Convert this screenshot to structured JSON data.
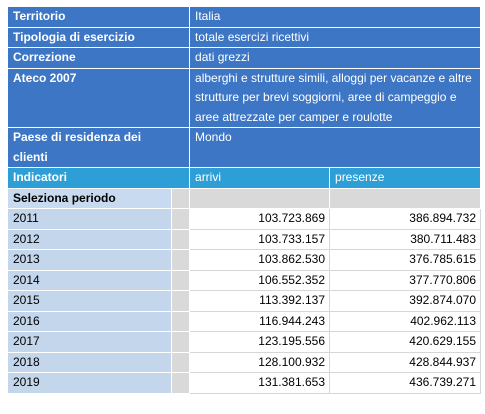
{
  "header": [
    {
      "label": "Territorio",
      "value": "Italia"
    },
    {
      "label": "Tipologia di esercizio",
      "value": "totale esercizi ricettivi"
    },
    {
      "label": "Correzione",
      "value": "dati grezzi"
    },
    {
      "label": "Ateco 2007",
      "value": "alberghi e strutture simili, alloggi per vacanze e altre strutture per brevi soggiorni, aree di campeggio e aree attrezzate per camper e roulotte"
    },
    {
      "label": "Paese di residenza dei clienti",
      "value": "Mondo"
    }
  ],
  "indicators": {
    "label": "Indicatori",
    "arrivi": "arrivi",
    "presenze": "presenze"
  },
  "period_label": "Seleziona periodo",
  "rows": [
    {
      "year": "2011",
      "arrivi": "103.723.869",
      "presenze": "386.894.732"
    },
    {
      "year": "2012",
      "arrivi": "103.733.157",
      "presenze": "380.711.483"
    },
    {
      "year": "2013",
      "arrivi": "103.862.530",
      "presenze": "376.785.615"
    },
    {
      "year": "2014",
      "arrivi": "106.552.352",
      "presenze": "377.770.806"
    },
    {
      "year": "2015",
      "arrivi": "113.392.137",
      "presenze": "392.874.070"
    },
    {
      "year": "2016",
      "arrivi": "116.944.243",
      "presenze": "402.962.113"
    },
    {
      "year": "2017",
      "arrivi": "123.195.556",
      "presenze": "420.629.155"
    },
    {
      "year": "2018",
      "arrivi": "128.100.932",
      "presenze": "428.844.937"
    },
    {
      "year": "2019",
      "arrivi": "131.381.653",
      "presenze": "436.739.271"
    }
  ]
}
